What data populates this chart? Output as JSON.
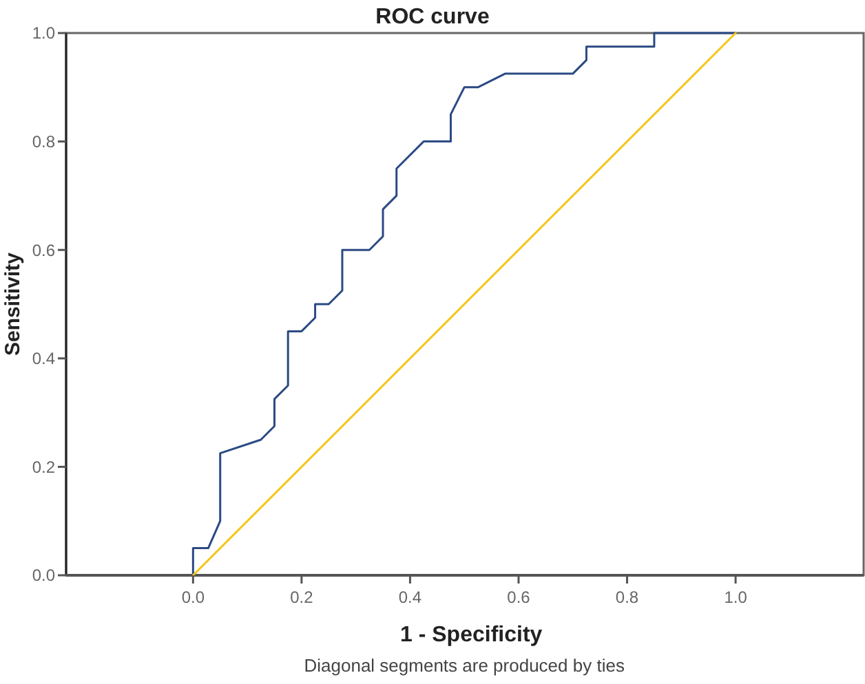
{
  "chart_data": {
    "type": "line",
    "title": "ROC curve",
    "xlabel": "1 - Specificity",
    "ylabel": "Sensitivity",
    "annotations": [
      "Diagonal segments are produced by ties"
    ],
    "xlim": [
      -0.234,
      1.236
    ],
    "ylim": [
      0,
      1
    ],
    "xticks": [
      {
        "value": 0,
        "label": "0.0"
      },
      {
        "value": 0.2,
        "label": "0.2"
      },
      {
        "value": 0.4,
        "label": "0.4"
      },
      {
        "value": 0.6,
        "label": "0.6"
      },
      {
        "value": 0.8,
        "label": "0.8"
      },
      {
        "value": 1,
        "label": "1.0"
      }
    ],
    "yticks": [
      {
        "value": 0,
        "label": "0.0"
      },
      {
        "value": 0.2,
        "label": "0.2"
      },
      {
        "value": 0.4,
        "label": "0.4"
      },
      {
        "value": 0.6,
        "label": "0.6"
      },
      {
        "value": 0.8,
        "label": "0.8"
      },
      {
        "value": 1,
        "label": "1.0"
      }
    ],
    "grid": false,
    "series": [
      {
        "color": "#2b4a84",
        "x": [
          0,
          0,
          0.028,
          0.05,
          0.05,
          0.125,
          0.15,
          0.15,
          0.175,
          0.175,
          0.2,
          0.225,
          0.225,
          0.25,
          0.275,
          0.275,
          0.325,
          0.35,
          0.35,
          0.375,
          0.375,
          0.425,
          0.475,
          0.475,
          0.5,
          0.525,
          0.575,
          0.7,
          0.725,
          0.725,
          0.85,
          0.85,
          1
        ],
        "values": [
          0,
          0.05,
          0.05,
          0.1,
          0.225,
          0.25,
          0.275,
          0.325,
          0.35,
          0.45,
          0.45,
          0.475,
          0.5,
          0.5,
          0.525,
          0.6,
          0.6,
          0.625,
          0.675,
          0.7,
          0.75,
          0.8,
          0.8,
          0.85,
          0.9,
          0.9,
          0.925,
          0.925,
          0.95,
          0.975,
          0.975,
          1,
          1
        ]
      },
      {
        "color": "#f5c518",
        "x": [
          0,
          1
        ],
        "values": [
          0,
          1
        ]
      }
    ]
  }
}
